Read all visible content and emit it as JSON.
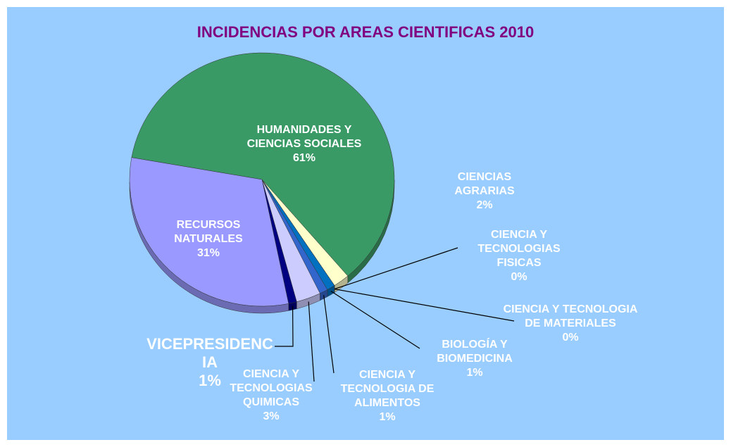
{
  "chart_data": {
    "type": "pie",
    "title": "INCIDENCIAS POR AREAS CIENTIFICAS 2010",
    "categories": [
      "HUMANIDADES Y CIENCIAS SOCIALES",
      "CIENCIAS AGRARIAS",
      "CIENCIA Y TECNOLOGIAS FISICAS",
      "CIENCIA Y TECNOLOGIA DE MATERIALES",
      "BIOLOGÍA Y BIOMEDICINA",
      "CIENCIA Y TECNOLOGIA DE ALIMENTOS",
      "CIENCIA Y TECNOLOGIAS QUIMICAS",
      "VICEPRESIDENCIA",
      "RECURSOS NATURALES"
    ],
    "values": [
      61,
      2,
      0,
      0,
      1,
      1,
      3,
      1,
      31
    ],
    "value_labels": [
      "61%",
      "2%",
      "0%",
      "0%",
      "1%",
      "1%",
      "3%",
      "1%",
      "31%"
    ],
    "colors": [
      "#3a9a66",
      "#ffffcc",
      "#ff6666",
      "#cc66cc",
      "#0070c0",
      "#3366cc",
      "#ccccff",
      "#000080",
      "#9999ff"
    ]
  }
}
